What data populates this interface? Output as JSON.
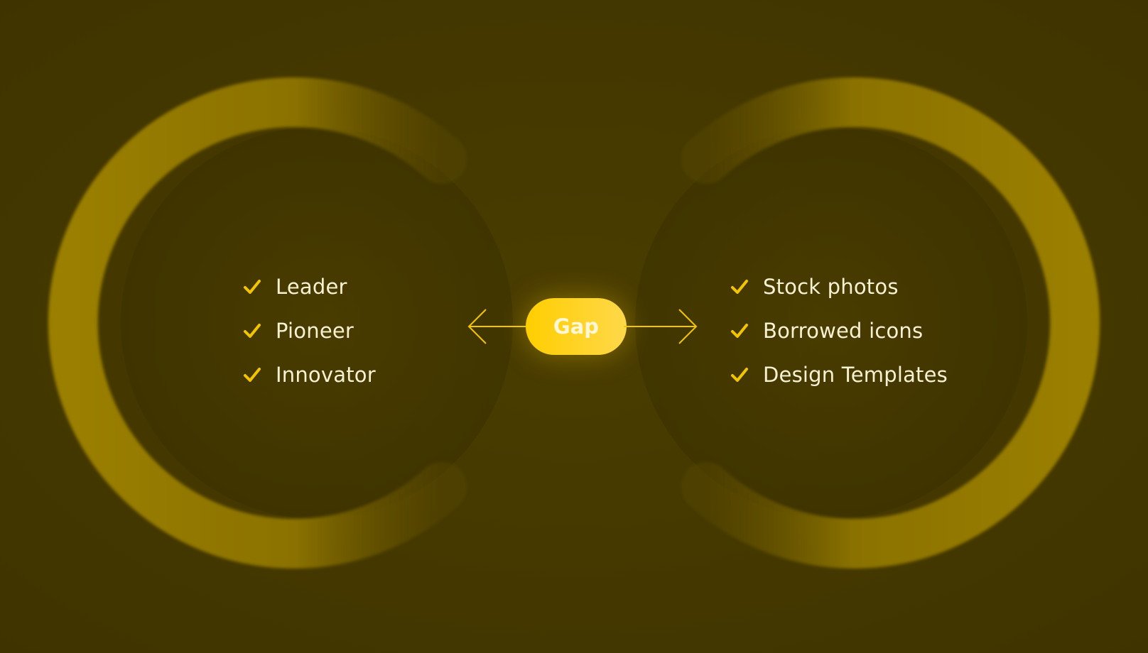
{
  "colors": {
    "background": "#443800",
    "ring": "#8f7600",
    "accent": "#f3c400",
    "pill": "#ffd000",
    "text": "#f7f1d4"
  },
  "left_list": {
    "items": [
      {
        "label": "Leader",
        "icon": "check-icon"
      },
      {
        "label": "Pioneer",
        "icon": "check-icon"
      },
      {
        "label": "Innovator",
        "icon": "check-icon"
      }
    ]
  },
  "right_list": {
    "items": [
      {
        "label": "Stock photos",
        "icon": "check-icon"
      },
      {
        "label": "Borrowed icons",
        "icon": "check-icon"
      },
      {
        "label": "Design Templates",
        "icon": "check-icon"
      }
    ]
  },
  "center": {
    "label": "Gap",
    "left_icon": "arrow-left-icon",
    "right_icon": "arrow-right-icon"
  }
}
